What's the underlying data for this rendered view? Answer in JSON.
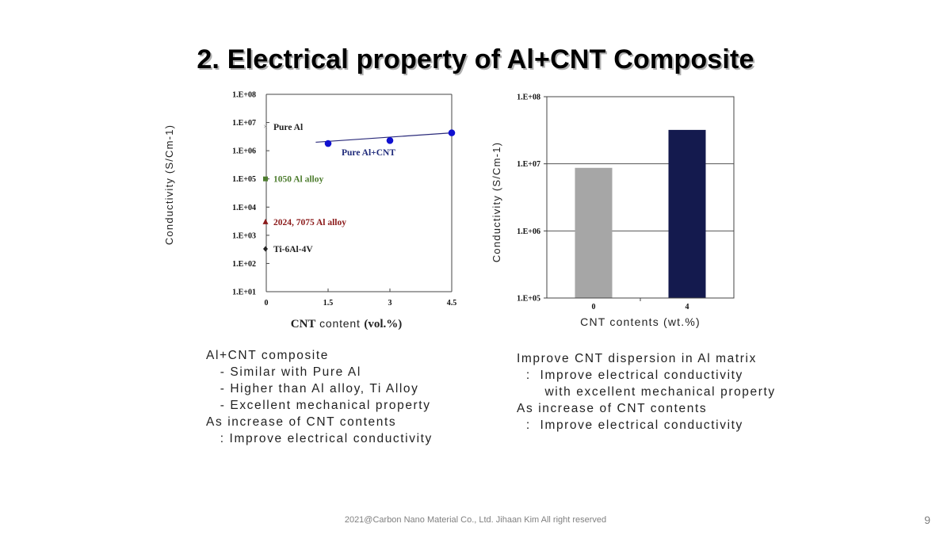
{
  "slide": {
    "title": "2. Electrical property of Al+CNT Composite",
    "footer": "2021@Carbon Nano Material Co., Ltd. Jihaan Kim All right reserved",
    "page_number": "9"
  },
  "left_notes": [
    "Al+CNT composite",
    "   - Similar with Pure Al",
    "   - Higher than Al alloy, Ti Alloy",
    "   - Excellent mechanical property",
    "As increase of CNT contents",
    "   : Improve electrical conductivity"
  ],
  "right_notes": [
    "Improve CNT dispersion in Al matrix",
    "  :  Improve electrical conductivity",
    "      with excellent mechanical property",
    "As increase of CNT contents",
    "  :  Improve electrical conductivity"
  ],
  "chart_data": [
    {
      "type": "scatter",
      "ylabel": "Conductivity (S/Cm-1)",
      "xlabel_bold_1": "CNT",
      "xlabel_plain": " content ",
      "xlabel_bold_2": "(vol.%)",
      "y_scale": "log",
      "ylim": [
        10,
        100000000
      ],
      "xlim": [
        0,
        4.5
      ],
      "x_ticks": [
        "0",
        "1.5",
        "3",
        "4.5"
      ],
      "y_ticks": [
        "1.E+01",
        "1.E+02",
        "1.E+03",
        "1.E+04",
        "1.E+05",
        "1.E+06",
        "1.E+07",
        "1.E+08"
      ],
      "grid": false,
      "references": [
        {
          "name": "Pure Al",
          "y": 7000000,
          "marker": "x",
          "color": "#888888",
          "text_color": "#222222"
        },
        {
          "name": "1050 Al alloy",
          "y": 100000,
          "marker": "square",
          "color": "#4e7d2f",
          "text_color": "#4e7d2f"
        },
        {
          "name": "2024, 7075 Al alloy",
          "y": 3000,
          "marker": "triangle",
          "color": "#8b1a1a",
          "text_color": "#8b1a1a"
        },
        {
          "name": "Ti-6Al-4V",
          "y": 330,
          "marker": "diamond",
          "color": "#222222",
          "text_color": "#222222"
        }
      ],
      "series": [
        {
          "name": "Pure Al+CNT",
          "color": "#1010d0",
          "text_color": "#1f2a7a",
          "x": [
            1.5,
            3,
            4.5
          ],
          "y": [
            1800000,
            2300000,
            4300000
          ]
        }
      ],
      "trend_line": {
        "x": [
          1.2,
          4.5
        ],
        "y": [
          2000000,
          4300000
        ],
        "color": "#2a2a7a"
      }
    },
    {
      "type": "bar",
      "ylabel": "Conductivity (S/Cm-1)",
      "xlabel": "CNT contents (wt.%)",
      "y_scale": "log",
      "ylim": [
        100000,
        100000000
      ],
      "y_ticks": [
        "1.E+05",
        "1.E+06",
        "1.E+07",
        "1.E+08"
      ],
      "grid": true,
      "categories": [
        "0",
        "4"
      ],
      "values": [
        8700000,
        32000000
      ],
      "colors": [
        "#a6a6a6",
        "#141a4e"
      ]
    }
  ]
}
